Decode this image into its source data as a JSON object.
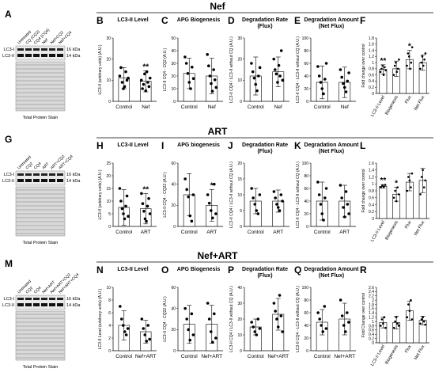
{
  "rows": [
    {
      "title": "Nef",
      "blot": {
        "letter": "A",
        "lanes": [
          "Untreated",
          "CQ (CQ2)",
          "CQ4 (CQ4)",
          "Nef",
          "Nef+CQ2",
          "Nef+CQ4"
        ],
        "band_labels": [
          "LC3-I",
          "LC3-II"
        ],
        "kda": [
          "16 kDa",
          "14 kDa"
        ],
        "caption": "Total Protein Stain"
      },
      "panels": [
        {
          "letter": "B",
          "title": [
            "LC3-II Level"
          ],
          "ylabel": "LC3-II (arbitrary units) (A.U.)",
          "categories": [
            "Control",
            "Nef"
          ],
          "means": [
            11,
            9.5
          ],
          "errs": [
            5,
            5
          ],
          "ymax": 30,
          "ticks": [
            0,
            10,
            20,
            30
          ],
          "stars": [
            "",
            "**"
          ],
          "points": [
            [
              12,
              16,
              9,
              6,
              7,
              14,
              10,
              11
            ],
            [
              10,
              6,
              8,
              13,
              5,
              14,
              9,
              7,
              11
            ]
          ]
        },
        {
          "letter": "C",
          "title": [
            "APG Biogenesis"
          ],
          "ylabel": "LC3-II CQ4 - CQ2 (A.U.)",
          "categories": [
            "Control",
            "Nef"
          ],
          "means": [
            22,
            20
          ],
          "errs": [
            12,
            14
          ],
          "ymax": 50,
          "ticks": [
            0,
            10,
            20,
            30,
            40,
            50
          ],
          "stars": [
            "",
            ""
          ],
          "points": [
            [
              35,
              30,
              22,
              15,
              10,
              27,
              18
            ],
            [
              37,
              28,
              20,
              14,
              8,
              25,
              17,
              11
            ]
          ]
        },
        {
          "letter": "D",
          "title": [
            "Degradation Rate",
            "(Flux)"
          ],
          "ylabel": "LC3-II CQ4 / LC3-II without CQ (A.U.)",
          "categories": [
            "Control",
            "Nef"
          ],
          "means": [
            12,
            14
          ],
          "errs": [
            9,
            7
          ],
          "ymax": 30,
          "ticks": [
            0,
            10,
            20,
            30
          ],
          "stars": [
            "",
            ""
          ],
          "points": [
            [
              18,
              14,
              11,
              8,
              5,
              12,
              16
            ],
            [
              20,
              15,
              13,
              9,
              17,
              12,
              24,
              10
            ]
          ]
        },
        {
          "letter": "E",
          "title": [
            "Degradation Amount",
            "(Net Flux)"
          ],
          "ylabel": "LC3-II CQ4 - LC3-II without CQ (A.U.)",
          "categories": [
            "Control",
            "Nef"
          ],
          "means": [
            30,
            30
          ],
          "errs": [
            26,
            24
          ],
          "ymax": 100,
          "ticks": [
            0,
            20,
            40,
            60,
            80,
            100
          ],
          "stars": [
            "",
            ""
          ],
          "points": [
            [
              55,
              40,
              30,
              20,
              12,
              35,
              60
            ],
            [
              50,
              38,
              28,
              22,
              15,
              32,
              45
            ]
          ]
        },
        {
          "letter": "F",
          "type": "fold",
          "ylabel": "Fold change over control",
          "categories": [
            "LC3-II Level",
            "Biogenesis",
            "Flux",
            "Net Flux"
          ],
          "means": [
            0.78,
            0.8,
            1.1,
            1.0
          ],
          "errs": [
            0.15,
            0.25,
            0.3,
            0.25
          ],
          "ymax": 1.8,
          "ticks": [
            0,
            0.2,
            0.4,
            0.6,
            0.8,
            1.0,
            1.2,
            1.4,
            1.6,
            1.8
          ],
          "stars": [
            "**",
            "",
            "*",
            ""
          ],
          "points": [
            [
              0.7,
              0.8,
              0.9,
              0.6,
              0.85,
              0.75
            ],
            [
              0.6,
              0.9,
              1.0,
              0.7,
              0.8,
              1.1
            ],
            [
              0.9,
              1.3,
              1.2,
              0.8,
              1.0,
              1.5
            ],
            [
              0.8,
              1.0,
              1.2,
              0.9,
              1.1,
              1.3
            ]
          ]
        }
      ]
    },
    {
      "title": "ART",
      "blot": {
        "letter": "G",
        "lanes": [
          "Untreated",
          "CQ2",
          "CQ4",
          "ART",
          "ART+CQ2",
          "ART+CQ4"
        ],
        "band_labels": [
          "LC3-I",
          "LC3-II"
        ],
        "kda": [
          "16 kDa",
          "14 kDa"
        ],
        "caption": "Total Protein Stain"
      },
      "panels": [
        {
          "letter": "H",
          "title": [
            "LC3-II Level"
          ],
          "ylabel": "LC3-II (arbitrary units) (A.U.)",
          "categories": [
            "Control",
            "ART"
          ],
          "means": [
            7.5,
            7
          ],
          "errs": [
            7,
            6
          ],
          "ymax": 25,
          "ticks": [
            0,
            5,
            10,
            15,
            20,
            25
          ],
          "stars": [
            "",
            "**"
          ],
          "points": [
            [
              15,
              10,
              7,
              5,
              3,
              8,
              12,
              4
            ],
            [
              13,
              9,
              6,
              3,
              2,
              8,
              11,
              5
            ]
          ]
        },
        {
          "letter": "I",
          "title": [
            "APG biogenesis"
          ],
          "ylabel": "LC3-II CQ4 - CQ22 (A.U.)",
          "categories": [
            "Control",
            "ART"
          ],
          "means": [
            30,
            20
          ],
          "errs": [
            20,
            15
          ],
          "ymax": 60,
          "ticks": [
            0,
            20,
            40,
            60
          ],
          "stars": [
            "",
            "*"
          ],
          "points": [
            [
              45,
              35,
              28,
              10,
              5,
              30
            ],
            [
              30,
              22,
              15,
              8,
              40,
              12
            ]
          ]
        },
        {
          "letter": "J",
          "title": [
            "Degradation Rate",
            "(Flux)"
          ],
          "ylabel": "LC3-II CQ4 / LC3-II without CQ (A.U.)",
          "categories": [
            "Control",
            "ART"
          ],
          "means": [
            8,
            8
          ],
          "errs": [
            4,
            3.5
          ],
          "ymax": 20,
          "ticks": [
            0,
            5,
            10,
            15,
            20
          ],
          "stars": [
            "",
            ""
          ],
          "points": [
            [
              12,
              9,
              7,
              5,
              4,
              10
            ],
            [
              11,
              9,
              7,
              6,
              5,
              10,
              8
            ]
          ]
        },
        {
          "letter": "K",
          "title": [
            "Degradation Amount",
            "(Net Flux)"
          ],
          "ylabel": "LC3-II CQ4 - LC3-II without CQ (A.U.)",
          "categories": [
            "Control",
            "ART"
          ],
          "means": [
            40,
            40
          ],
          "errs": [
            30,
            25
          ],
          "ymax": 100,
          "ticks": [
            0,
            20,
            40,
            60,
            80,
            100
          ],
          "stars": [
            "",
            ""
          ],
          "points": [
            [
              70,
              50,
              35,
              20,
              10,
              45,
              60
            ],
            [
              65,
              45,
              30,
              15,
              55,
              35,
              20
            ]
          ]
        },
        {
          "letter": "L",
          "type": "fold",
          "ylabel": "Fold change over control",
          "categories": [
            "LC3-II Level",
            "Biogenesis",
            "Flux",
            "Net Flux"
          ],
          "means": [
            0.93,
            0.7,
            1.05,
            1.1
          ],
          "errs": [
            0.05,
            0.2,
            0.25,
            0.35
          ],
          "ymax": 1.6,
          "ticks": [
            0,
            0.2,
            0.4,
            0.6,
            0.8,
            1.0,
            1.2,
            1.4,
            1.6
          ],
          "stars": [
            "**",
            "*",
            "",
            ""
          ],
          "points": [
            [
              0.9,
              0.95,
              0.92,
              0.97
            ],
            [
              0.6,
              0.8,
              0.5,
              0.9,
              0.7
            ],
            [
              0.8,
              1.2,
              1.1,
              0.9,
              1.3
            ],
            [
              0.7,
              1.2,
              1.4,
              0.9,
              1.1
            ]
          ]
        }
      ]
    },
    {
      "title": "Nef+ART",
      "blot": {
        "letter": "M",
        "lanes": [
          "Untreated",
          "CQ2",
          "CQ4",
          "Nef+ART",
          "Nef+ART+CQ2",
          "Nef+ART+CQ4"
        ],
        "band_labels": [
          "LC3-I",
          "LC3-II"
        ],
        "kda": [
          "16 kDa",
          "14 kDa"
        ],
        "caption": "Total Protein Stain"
      },
      "panels": [
        {
          "letter": "N",
          "title": [
            "LC3-II Level"
          ],
          "ylabel": "LC3-II Level (arbitrary units) (A.U.)",
          "categories": [
            "Control",
            "Nef+ART"
          ],
          "means": [
            4,
            3
          ],
          "errs": [
            2.3,
            1.8
          ],
          "ymax": 10,
          "ticks": [
            0,
            2,
            4,
            6,
            8,
            10
          ],
          "stars": [
            "",
            ""
          ],
          "points": [
            [
              7,
              5,
              4,
              3,
              2.5,
              3.5
            ],
            [
              5,
              3.5,
              2.5,
              1.5,
              4,
              1.8
            ]
          ]
        },
        {
          "letter": "O",
          "title": [
            "APG Biogenesis"
          ],
          "ylabel": "LC3-II CQ4 - CQ22 (A.U.)",
          "categories": [
            "Control",
            "Nef+ART"
          ],
          "means": [
            25,
            25
          ],
          "errs": [
            18,
            18
          ],
          "ymax": 60,
          "ticks": [
            0,
            20,
            40,
            60
          ],
          "stars": [
            "",
            ""
          ],
          "points": [
            [
              40,
              30,
              20,
              10,
              35,
              15
            ],
            [
              45,
              30,
              18,
              8,
              35,
              12
            ]
          ]
        },
        {
          "letter": "P",
          "title": [
            "Degradation Rate",
            "(Flux)"
          ],
          "ylabel": "LC3-II CQ4 / LC3-II without CQ (A.U.)",
          "categories": [
            "Control",
            "Nef+ART"
          ],
          "means": [
            15,
            23
          ],
          "errs": [
            5,
            10
          ],
          "ymax": 40,
          "ticks": [
            0,
            10,
            20,
            30,
            40
          ],
          "stars": [
            "",
            ""
          ],
          "points": [
            [
              18,
              15,
              12,
              10,
              20,
              14
            ],
            [
              30,
              25,
              20,
              15,
              35,
              22,
              12
            ]
          ]
        },
        {
          "letter": "Q",
          "title": [
            "Degradation Amount",
            "(Net Flux)"
          ],
          "ylabel": "LC3-II CQ4 - LC3-II without CQ (A.U.)",
          "categories": [
            "Control",
            "Nef+ART"
          ],
          "means": [
            45,
            50
          ],
          "errs": [
            20,
            25
          ],
          "ymax": 100,
          "ticks": [
            0,
            20,
            40,
            60,
            80,
            100
          ],
          "stars": [
            "",
            ""
          ],
          "points": [
            [
              60,
              50,
              40,
              30,
              70,
              35
            ],
            [
              80,
              55,
              40,
              30,
              60,
              45
            ]
          ]
        },
        {
          "letter": "R",
          "type": "fold",
          "ylabel": "Fold Change over control",
          "categories": [
            "LC3-II Level",
            "Biogenesis",
            "Flux",
            "Net Flux"
          ],
          "means": [
            0.95,
            0.95,
            1.5,
            1.05
          ],
          "errs": [
            0.25,
            0.3,
            0.45,
            0.2
          ],
          "ymax": 2.6,
          "ticks": [
            0,
            0.2,
            0.4,
            0.6,
            0.8,
            1.0,
            1.2,
            1.4,
            1.6,
            1.8,
            2.0,
            2.2,
            2.4,
            2.6
          ],
          "stars": [
            "",
            "",
            "",
            ""
          ],
          "points": [
            [
              0.8,
              1.1,
              0.9,
              1.2,
              0.7
            ],
            [
              0.7,
              1.0,
              1.2,
              0.9,
              0.8
            ],
            [
              1.2,
              1.8,
              1.5,
              2.0,
              1.1
            ],
            [
              0.9,
              1.1,
              1.2,
              1.0,
              0.85
            ]
          ]
        }
      ]
    }
  ]
}
